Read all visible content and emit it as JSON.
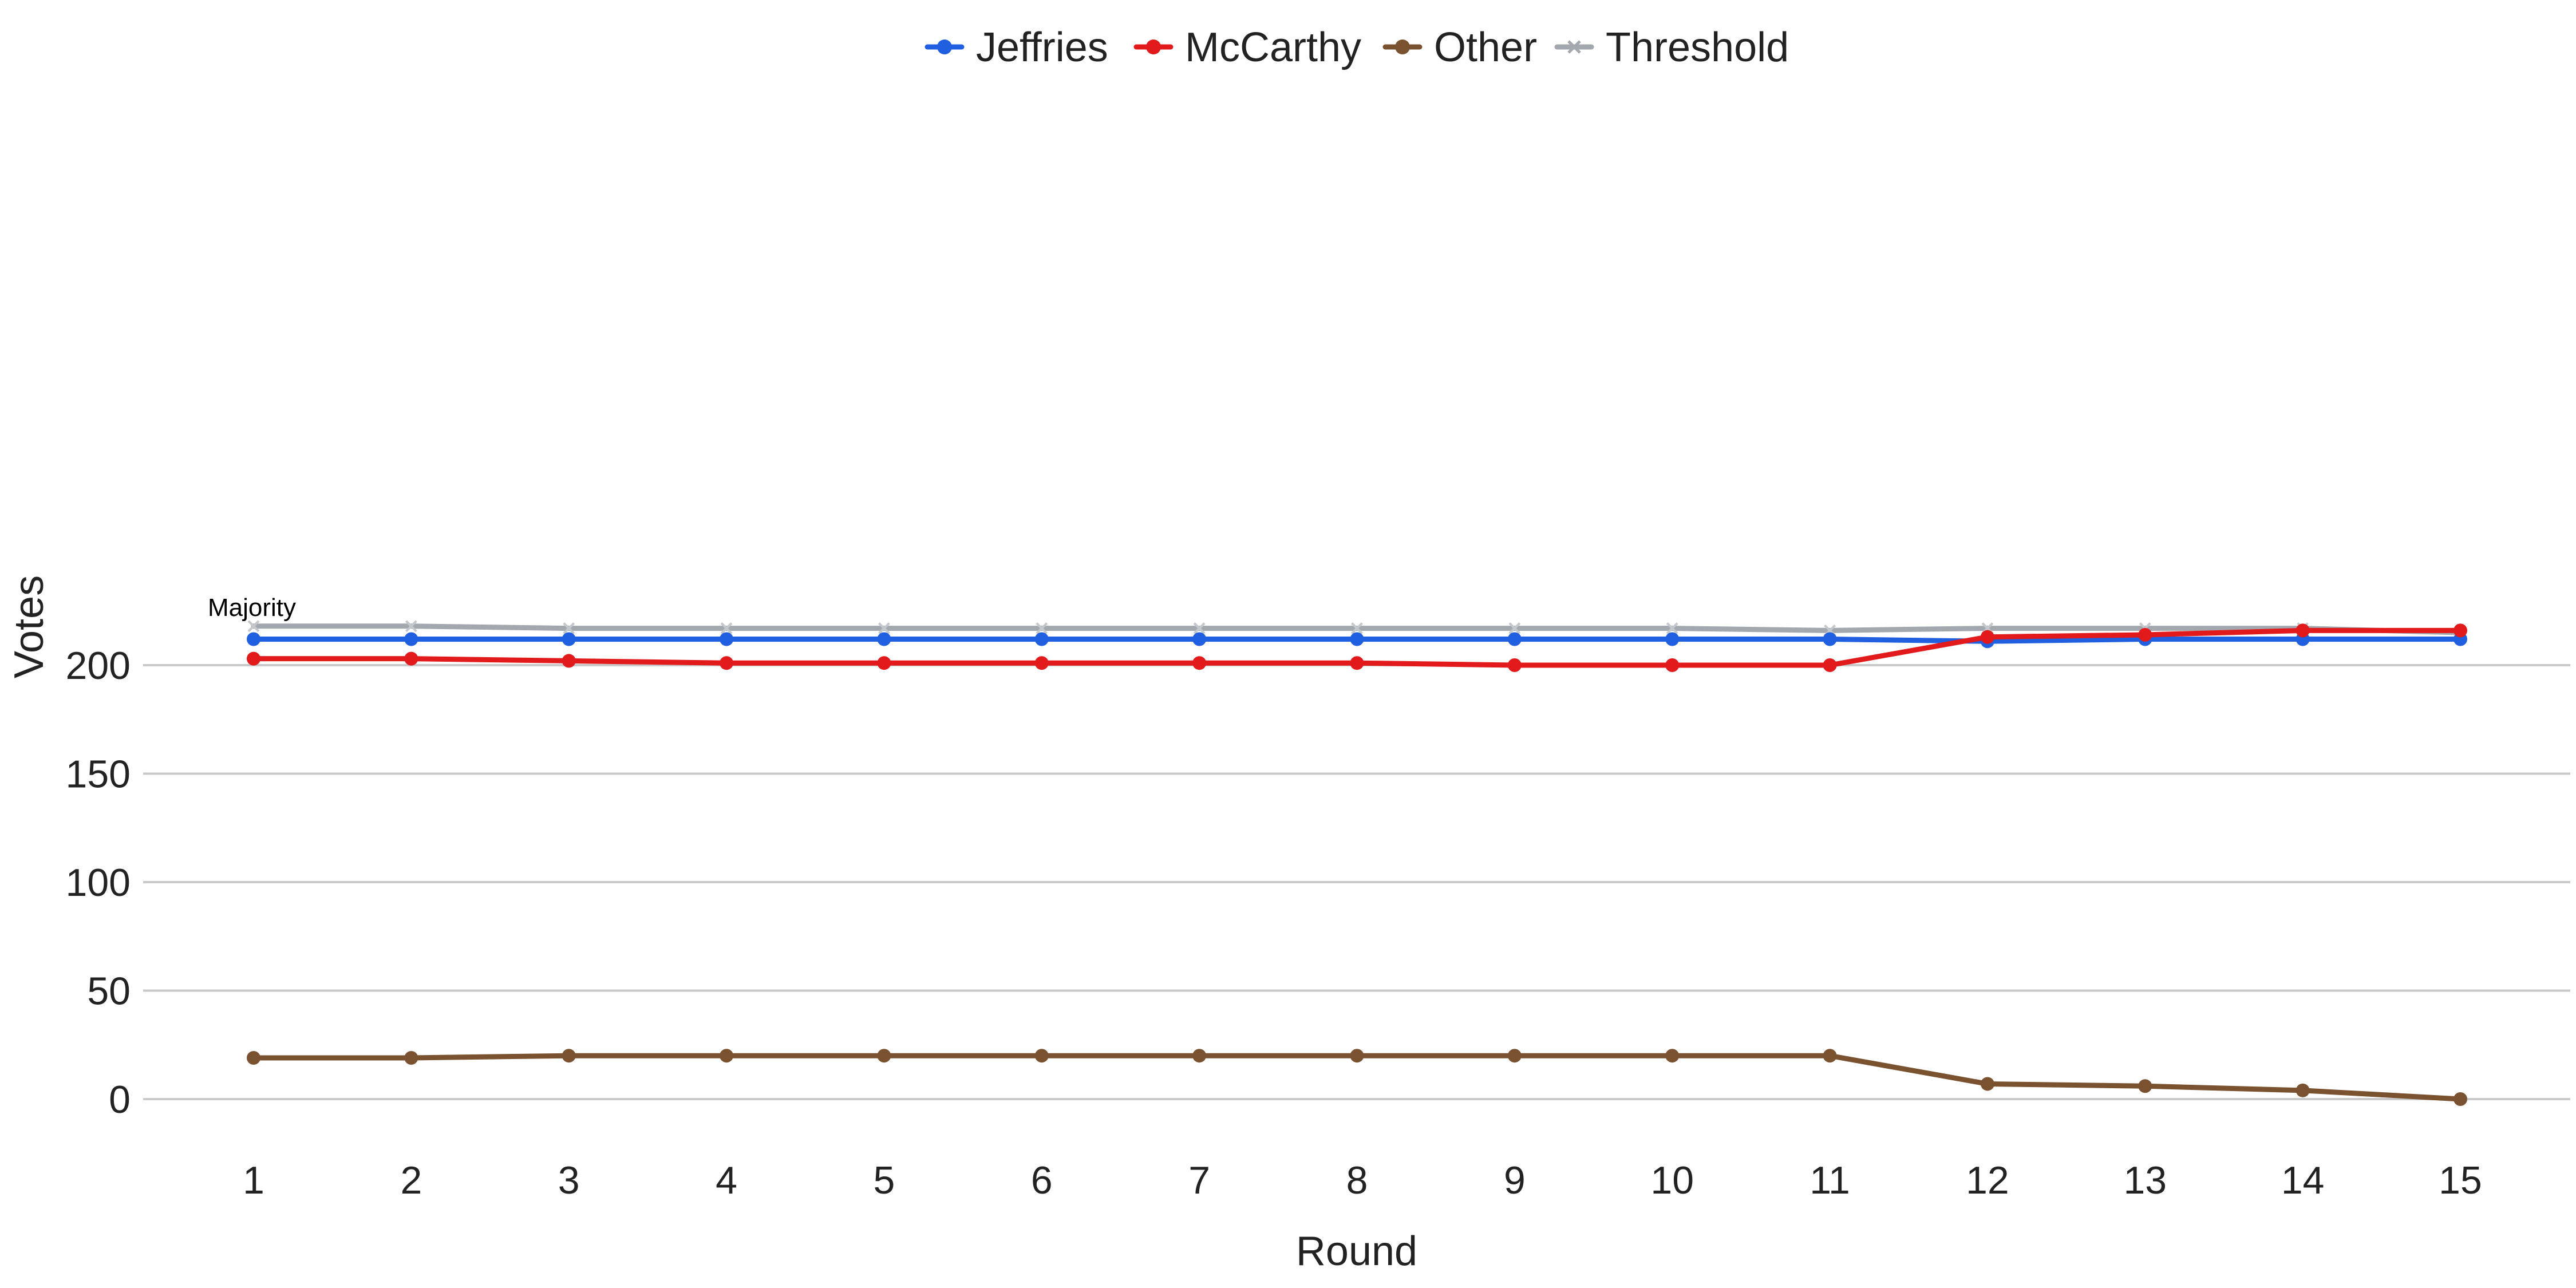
{
  "chart_data": {
    "type": "line",
    "title": "",
    "xlabel": "Round",
    "ylabel": "Votes",
    "categories": [
      "1",
      "2",
      "3",
      "4",
      "5",
      "6",
      "7",
      "8",
      "9",
      "10",
      "11",
      "12",
      "13",
      "14",
      "15"
    ],
    "ylim": [
      -8,
      232
    ],
    "y_ticks": [
      "0",
      "50",
      "100",
      "150",
      "200"
    ],
    "grid": "horizontal",
    "legend": "top-center",
    "series": [
      {
        "name": "Jeffries",
        "color": "#1f5fe0",
        "marker": "circle",
        "values": [
          212,
          212,
          212,
          212,
          212,
          212,
          212,
          212,
          212,
          212,
          212,
          211,
          212,
          212,
          212
        ]
      },
      {
        "name": "McCarthy",
        "color": "#e31a1c",
        "marker": "circle",
        "values": [
          203,
          203,
          202,
          201,
          201,
          201,
          201,
          201,
          200,
          200,
          200,
          213,
          214,
          216,
          216
        ]
      },
      {
        "name": "Other",
        "color": "#7a5230",
        "marker": "circle",
        "values": [
          19,
          19,
          20,
          20,
          20,
          20,
          20,
          20,
          20,
          20,
          20,
          7,
          6,
          4,
          0
        ]
      },
      {
        "name": "Threshold",
        "color": "#a3a8ae",
        "marker": "x",
        "values": [
          218,
          218,
          217,
          217,
          217,
          217,
          217,
          217,
          217,
          217,
          216,
          217,
          217,
          217,
          215
        ]
      }
    ],
    "annotations": [
      {
        "text": "Majority",
        "x": "1",
        "y": 218
      }
    ]
  }
}
